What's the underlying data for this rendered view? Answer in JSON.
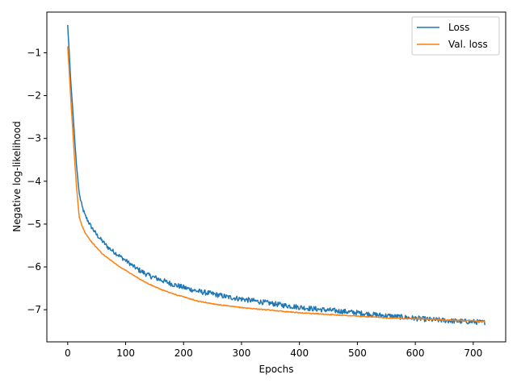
{
  "chart_data": {
    "type": "line",
    "title": "",
    "xlabel": "Epochs",
    "ylabel": "Negative log-likelihood",
    "xlim": [
      -36,
      756
    ],
    "ylim": [
      -7.75,
      -0.05
    ],
    "xticks": [
      0,
      100,
      200,
      300,
      400,
      500,
      600,
      700
    ],
    "yticks": [
      -1,
      -2,
      -3,
      -4,
      -5,
      -6,
      -7
    ],
    "ytick_labels": [
      "−1",
      "−2",
      "−3",
      "−4",
      "−5",
      "−6",
      "−7"
    ],
    "grid": false,
    "legend_position": "top-right",
    "series": [
      {
        "name": "Loss",
        "color": "#1f77b4",
        "noise": 0.06,
        "x": [
          0,
          5,
          10,
          15,
          20,
          25,
          30,
          40,
          50,
          60,
          70,
          80,
          90,
          100,
          120,
          140,
          160,
          180,
          200,
          225,
          250,
          275,
          300,
          325,
          350,
          375,
          400,
          425,
          450,
          475,
          500,
          525,
          550,
          575,
          600,
          625,
          650,
          675,
          700,
          720
        ],
        "values": [
          -0.35,
          -1.6,
          -2.6,
          -3.6,
          -4.3,
          -4.6,
          -4.8,
          -5.05,
          -5.25,
          -5.4,
          -5.55,
          -5.65,
          -5.75,
          -5.85,
          -6.05,
          -6.2,
          -6.3,
          -6.4,
          -6.48,
          -6.57,
          -6.63,
          -6.7,
          -6.75,
          -6.8,
          -6.85,
          -6.9,
          -6.94,
          -6.98,
          -7.01,
          -7.04,
          -7.07,
          -7.11,
          -7.14,
          -7.17,
          -7.2,
          -7.23,
          -7.25,
          -7.27,
          -7.28,
          -7.3
        ]
      },
      {
        "name": "Val. loss",
        "color": "#ff7f0e",
        "noise": 0.01,
        "x": [
          0,
          5,
          10,
          15,
          20,
          25,
          30,
          40,
          50,
          60,
          70,
          80,
          90,
          100,
          120,
          140,
          160,
          180,
          200,
          225,
          250,
          275,
          300,
          325,
          350,
          375,
          400,
          425,
          450,
          475,
          500,
          525,
          550,
          575,
          600,
          625,
          650,
          675,
          700,
          720
        ],
        "values": [
          -0.85,
          -2.0,
          -3.1,
          -4.1,
          -4.85,
          -5.05,
          -5.2,
          -5.4,
          -5.55,
          -5.7,
          -5.8,
          -5.9,
          -6.0,
          -6.08,
          -6.25,
          -6.4,
          -6.52,
          -6.62,
          -6.7,
          -6.8,
          -6.86,
          -6.91,
          -6.95,
          -6.98,
          -7.01,
          -7.04,
          -7.07,
          -7.09,
          -7.11,
          -7.13,
          -7.15,
          -7.17,
          -7.19,
          -7.2,
          -7.21,
          -7.22,
          -7.24,
          -7.25,
          -7.26,
          -7.28
        ]
      }
    ]
  }
}
